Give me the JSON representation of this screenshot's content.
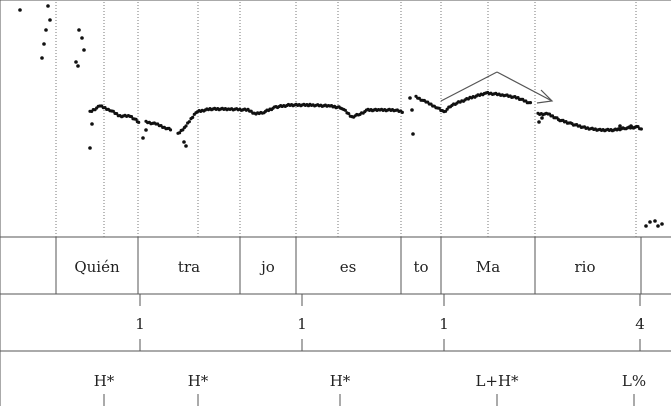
{
  "syllables": [
    "Quién",
    "tra",
    "jo",
    "es",
    "to",
    "Ma",
    "rio"
  ],
  "break_indices": [
    "1",
    "1",
    "1",
    "4"
  ],
  "tones": [
    "H*",
    "H*",
    "H*",
    "L+H*",
    "L%"
  ],
  "colors": {
    "pitch": "#111111",
    "lines": "#555555",
    "dotted": "#777777",
    "arrow": "#555555"
  }
}
